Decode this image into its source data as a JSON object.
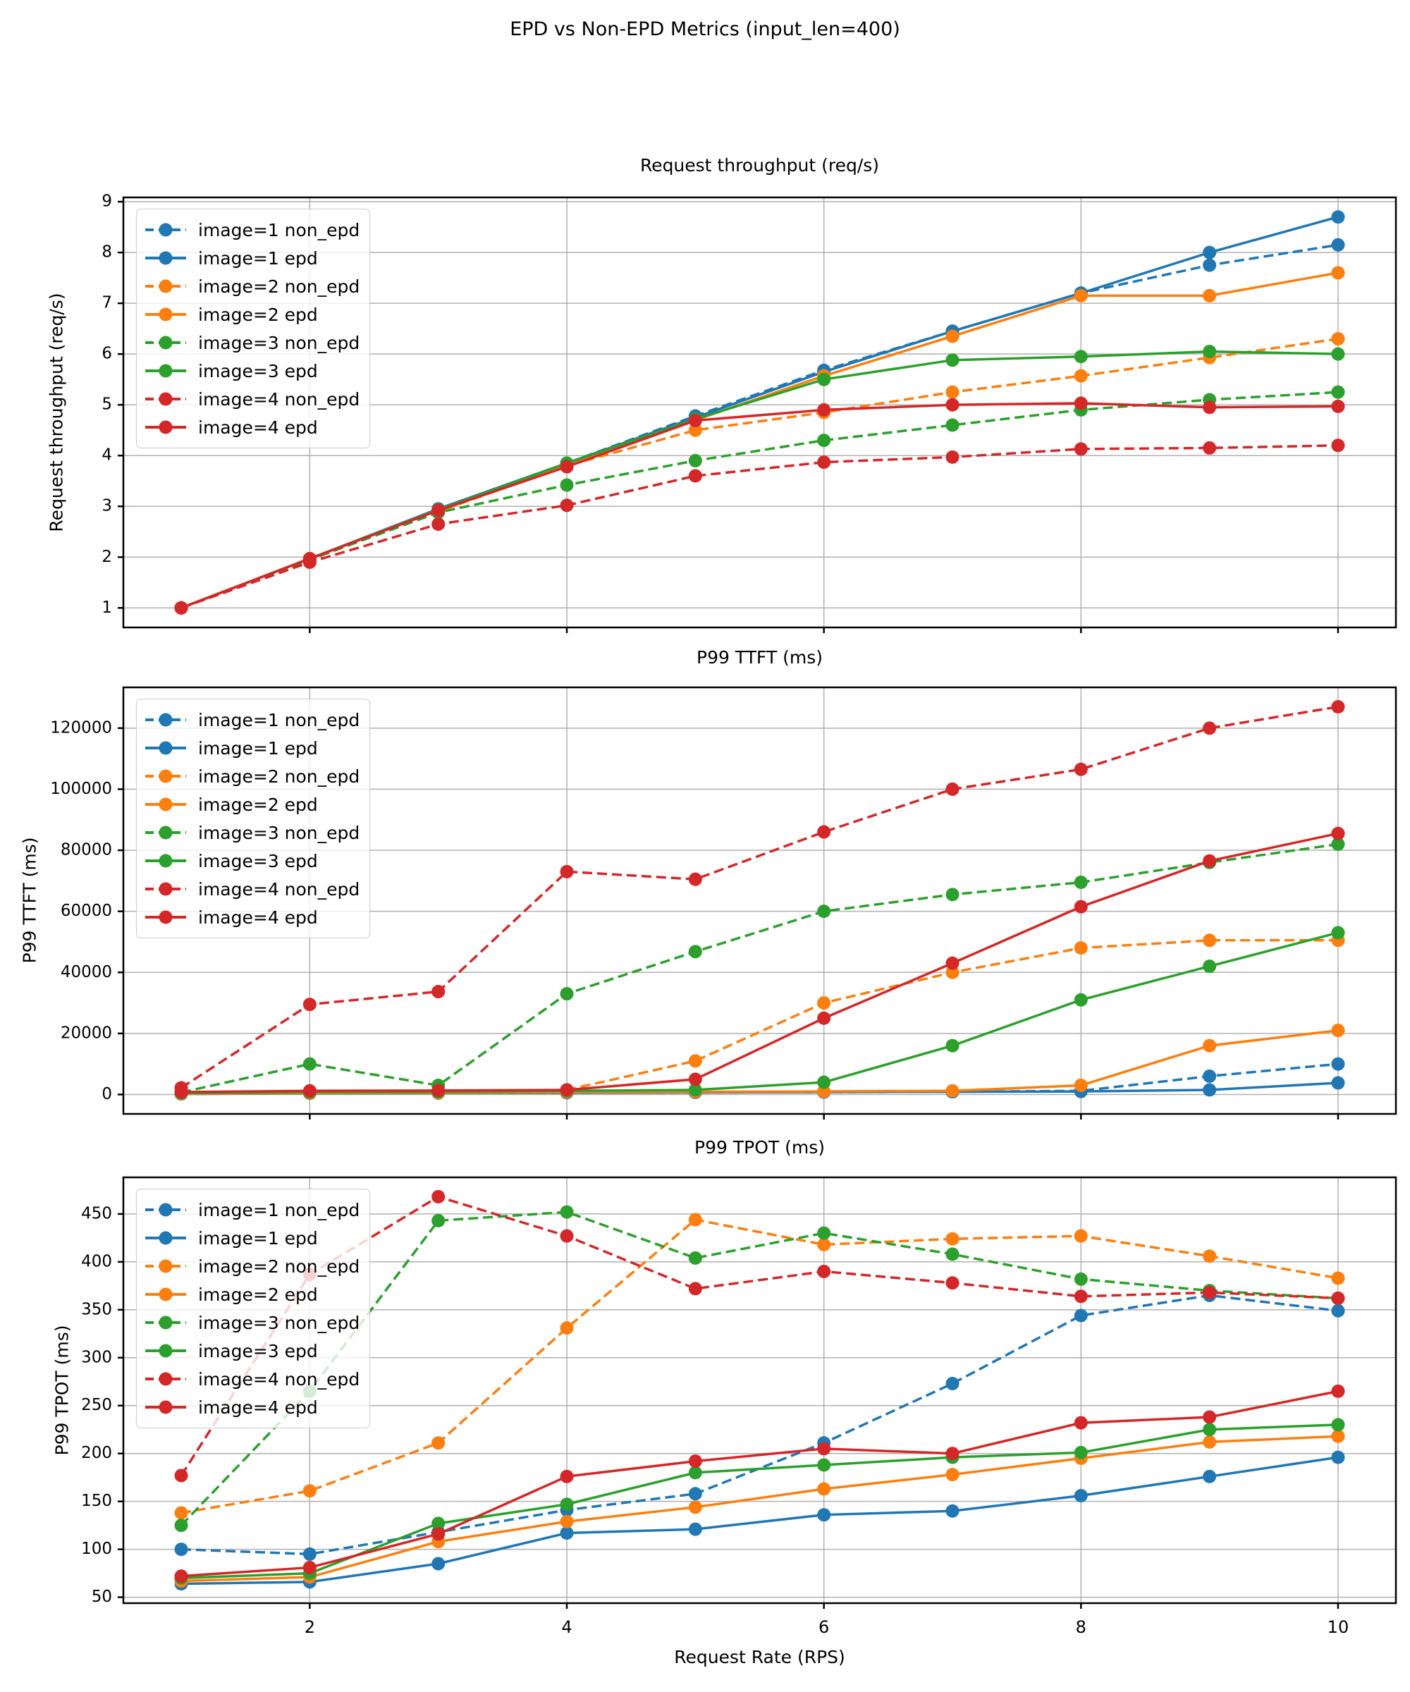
{
  "figure": {
    "title": "EPD vs Non-EPD Metrics (input_len=400)",
    "xlabel": "Request Rate (RPS)",
    "background": "#ffffff",
    "text_color": "#000000",
    "grid_color": "#b0b0b0",
    "axis_color": "#000000",
    "legend_border_color": "#cccccc"
  },
  "chart_data": [
    {
      "type": "line",
      "title": "Request throughput (req/s)",
      "ylabel": "Request throughput (req/s)",
      "x": [
        1,
        2,
        3,
        4,
        5,
        6,
        7,
        8,
        9,
        10
      ],
      "xlim": [
        0.55,
        10.45
      ],
      "ylim": [
        0.615,
        9.085
      ],
      "xticks": [
        2,
        4,
        6,
        8,
        10
      ],
      "yticks": [
        1,
        2,
        3,
        4,
        5,
        6,
        7,
        8,
        9
      ],
      "show_xticklabels": false,
      "grid": true,
      "legend_position": "upper-left",
      "series": [
        {
          "name": "image=1 non_epd",
          "color": "#1f77b4",
          "style": "dashed",
          "values": [
            1.0,
            1.95,
            2.95,
            3.85,
            4.78,
            5.68,
            6.45,
            7.2,
            7.75,
            8.15
          ]
        },
        {
          "name": "image=1 epd",
          "color": "#1f77b4",
          "style": "solid",
          "values": [
            1.0,
            1.97,
            2.95,
            3.85,
            4.75,
            5.65,
            6.45,
            7.2,
            8.0,
            8.7
          ]
        },
        {
          "name": "image=2 non_epd",
          "color": "#ff7f0e",
          "style": "dashed",
          "values": [
            1.0,
            1.95,
            2.9,
            3.8,
            4.5,
            4.85,
            5.25,
            5.57,
            5.93,
            6.3
          ]
        },
        {
          "name": "image=2 epd",
          "color": "#ff7f0e",
          "style": "solid",
          "values": [
            1.0,
            1.97,
            2.93,
            3.83,
            4.7,
            5.57,
            6.35,
            7.15,
            7.15,
            7.6
          ]
        },
        {
          "name": "image=3 non_epd",
          "color": "#2ca02c",
          "style": "dashed",
          "values": [
            1.0,
            1.95,
            2.88,
            3.42,
            3.9,
            4.3,
            4.6,
            4.9,
            5.1,
            5.25
          ]
        },
        {
          "name": "image=3 epd",
          "color": "#2ca02c",
          "style": "solid",
          "values": [
            1.0,
            1.97,
            2.93,
            3.85,
            4.72,
            5.5,
            5.88,
            5.95,
            6.05,
            6.0
          ]
        },
        {
          "name": "image=4 non_epd",
          "color": "#d62728",
          "style": "dashed",
          "values": [
            1.0,
            1.9,
            2.65,
            3.02,
            3.6,
            3.87,
            3.97,
            4.13,
            4.15,
            4.2
          ]
        },
        {
          "name": "image=4 epd",
          "color": "#d62728",
          "style": "solid",
          "values": [
            1.0,
            1.97,
            2.92,
            3.78,
            4.69,
            4.9,
            5.0,
            5.03,
            4.95,
            4.97
          ]
        }
      ]
    },
    {
      "type": "line",
      "title": "P99 TTFT (ms)",
      "ylabel": "P99 TTFT (ms)",
      "x": [
        1,
        2,
        3,
        4,
        5,
        6,
        7,
        8,
        9,
        10
      ],
      "xlim": [
        0.55,
        10.45
      ],
      "ylim": [
        -6350,
        133350
      ],
      "xticks": [
        2,
        4,
        6,
        8,
        10
      ],
      "yticks": [
        0,
        20000,
        40000,
        60000,
        80000,
        100000,
        120000
      ],
      "show_xticklabels": false,
      "grid": true,
      "legend_position": "upper-left",
      "series": [
        {
          "name": "image=1 non_epd",
          "color": "#1f77b4",
          "style": "dashed",
          "values": [
            200,
            400,
            500,
            600,
            700,
            800,
            900,
            1200,
            6000,
            10000
          ]
        },
        {
          "name": "image=1 epd",
          "color": "#1f77b4",
          "style": "solid",
          "values": [
            200,
            400,
            500,
            600,
            700,
            800,
            900,
            1000,
            1500,
            3800
          ]
        },
        {
          "name": "image=2 non_epd",
          "color": "#ff7f0e",
          "style": "dashed",
          "values": [
            300,
            500,
            800,
            1500,
            11000,
            30000,
            40000,
            48000,
            50500,
            50500
          ]
        },
        {
          "name": "image=2 epd",
          "color": "#ff7f0e",
          "style": "solid",
          "values": [
            300,
            500,
            600,
            800,
            900,
            1000,
            1200,
            3000,
            16000,
            21000
          ]
        },
        {
          "name": "image=3 non_epd",
          "color": "#2ca02c",
          "style": "dashed",
          "values": [
            700,
            10000,
            3000,
            33000,
            46800,
            60000,
            65500,
            69500,
            76000,
            82000
          ]
        },
        {
          "name": "image=3 epd",
          "color": "#2ca02c",
          "style": "solid",
          "values": [
            500,
            800,
            900,
            1200,
            1500,
            4000,
            16000,
            31000,
            42000,
            53000
          ]
        },
        {
          "name": "image=4 non_epd",
          "color": "#d62728",
          "style": "dashed",
          "values": [
            2200,
            29500,
            33700,
            73000,
            70500,
            86000,
            100000,
            106500,
            120000,
            127000
          ]
        },
        {
          "name": "image=4 epd",
          "color": "#d62728",
          "style": "solid",
          "values": [
            800,
            1200,
            1300,
            1500,
            5000,
            25000,
            43000,
            61500,
            76500,
            85500
          ]
        }
      ]
    },
    {
      "type": "line",
      "title": "P99 TPOT (ms)",
      "ylabel": "P99 TPOT (ms)",
      "x": [
        1,
        2,
        3,
        4,
        5,
        6,
        7,
        8,
        9,
        10
      ],
      "xlim": [
        0.55,
        10.45
      ],
      "ylim": [
        43.8,
        488.2
      ],
      "xticks": [
        2,
        4,
        6,
        8,
        10
      ],
      "yticks": [
        50,
        100,
        150,
        200,
        250,
        300,
        350,
        400,
        450
      ],
      "show_xticklabels": true,
      "grid": true,
      "legend_position": "upper-left",
      "series": [
        {
          "name": "image=1 non_epd",
          "color": "#1f77b4",
          "style": "dashed",
          "values": [
            100,
            95,
            118,
            141,
            158,
            211,
            273,
            344,
            365,
            349
          ]
        },
        {
          "name": "image=1 epd",
          "color": "#1f77b4",
          "style": "solid",
          "values": [
            64,
            66,
            85,
            117,
            121,
            136,
            140,
            156,
            176,
            196
          ]
        },
        {
          "name": "image=2 non_epd",
          "color": "#ff7f0e",
          "style": "dashed",
          "values": [
            138,
            161,
            211,
            331,
            444,
            418,
            424,
            427,
            406,
            383
          ]
        },
        {
          "name": "image=2 epd",
          "color": "#ff7f0e",
          "style": "solid",
          "values": [
            67,
            71,
            108,
            129,
            144,
            163,
            178,
            195,
            212,
            218
          ]
        },
        {
          "name": "image=3 non_epd",
          "color": "#2ca02c",
          "style": "dashed",
          "values": [
            125,
            265,
            443,
            452,
            404,
            430,
            408,
            382,
            370,
            362
          ]
        },
        {
          "name": "image=3 epd",
          "color": "#2ca02c",
          "style": "solid",
          "values": [
            70,
            75,
            127,
            147,
            180,
            188,
            196,
            201,
            225,
            230
          ]
        },
        {
          "name": "image=4 non_epd",
          "color": "#d62728",
          "style": "dashed",
          "values": [
            177,
            387,
            468,
            427,
            372,
            390,
            378,
            364,
            368,
            362
          ]
        },
        {
          "name": "image=4 epd",
          "color": "#d62728",
          "style": "solid",
          "values": [
            72,
            81,
            116,
            176,
            192,
            205,
            200,
            232,
            238,
            265
          ]
        }
      ]
    }
  ]
}
